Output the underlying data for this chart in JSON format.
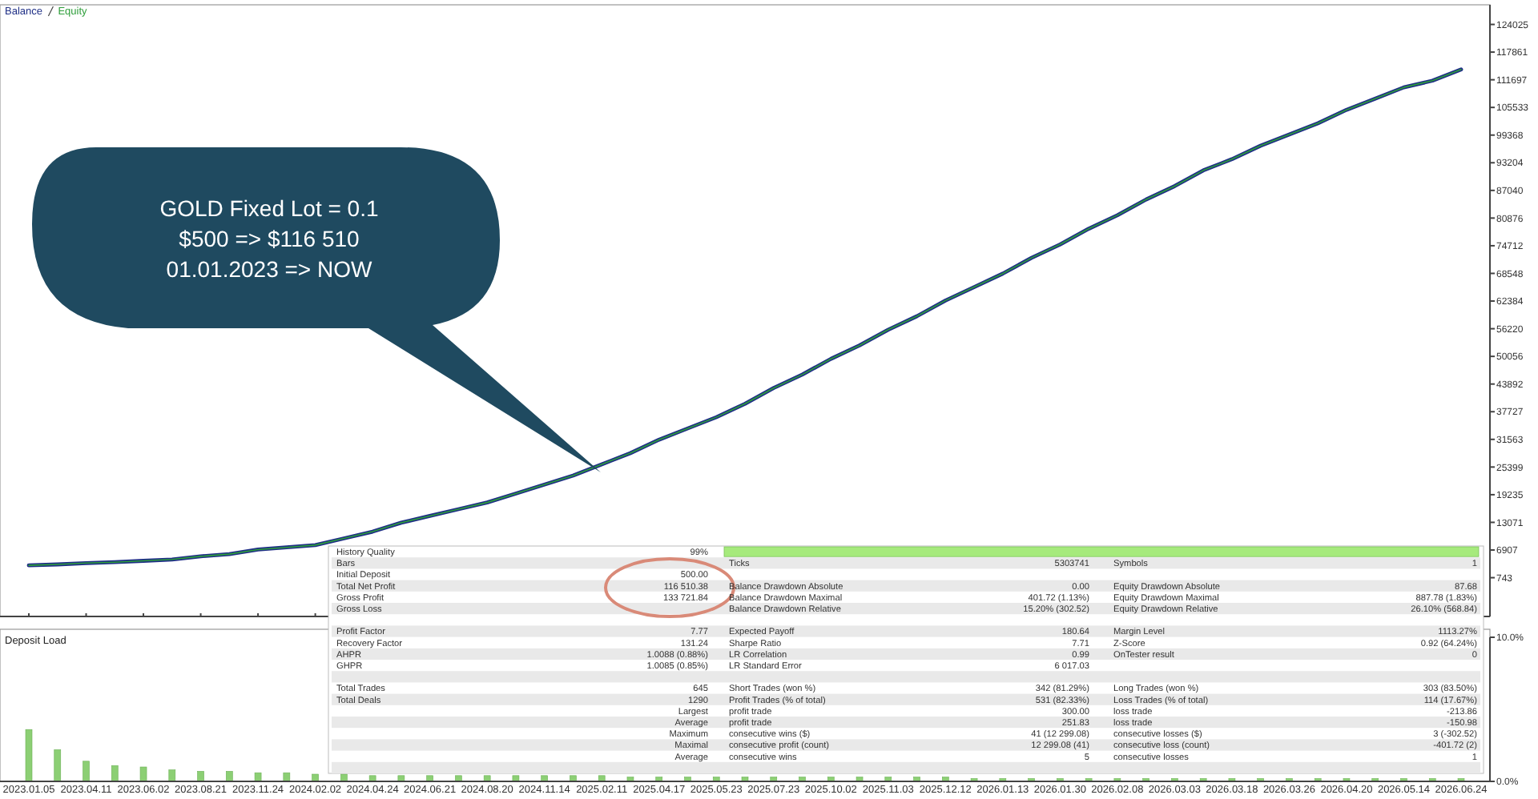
{
  "chart_data": [
    {
      "type": "line",
      "legend": "top left",
      "tick_labels": "y",
      "ylim": [
        -7900,
        128400
      ],
      "yticks": [
        743,
        6907,
        13071,
        19235,
        25399,
        31563,
        37727,
        43892,
        50056,
        56220,
        62384,
        68548,
        74712,
        80876,
        87040,
        93204,
        99368,
        105533,
        111697,
        117861,
        124025
      ],
      "categories": [
        "2023.01.05",
        null,
        "2023.04.11",
        null,
        "2023.06.02",
        null,
        "2023.08.21",
        null,
        "2023.11.24",
        null,
        "2024.02.02",
        null,
        "2024.04.24",
        null,
        "2024.06.21",
        null,
        "2024.08.20",
        null,
        "2024.11.14",
        null,
        "2025.02.11",
        null,
        "2025.04.17",
        null,
        "2025.05.23",
        null,
        "2025.07.23",
        null,
        "2025.10.02",
        null,
        "2025.11.03",
        null,
        "2025.12.12",
        null,
        "2026.01.13",
        null,
        "2026.01.30",
        null,
        "2026.02.08",
        null,
        "2026.03.03",
        null,
        "2026.03.18",
        null,
        "2026.03.26",
        null,
        "2026.04.20",
        null,
        "2026.05.14",
        null,
        "2026.06.24"
      ],
      "series": [
        {
          "name": "Balance",
          "color": "#1f2f86",
          "values": [
            3500,
            3700,
            4000,
            4200,
            4500,
            4800,
            5500,
            6000,
            7000,
            7500,
            8000,
            9500,
            11000,
            13000,
            14500,
            16000,
            17500,
            19500,
            21500,
            23500,
            26000,
            28500,
            31500,
            34000,
            36500,
            39500,
            43000,
            46000,
            49500,
            52500,
            56000,
            59000,
            62500,
            65500,
            68500,
            72000,
            75000,
            78500,
            81500,
            85000,
            88000,
            91500,
            94000,
            97000,
            99500,
            102000,
            105000,
            107500,
            110000,
            111500,
            114000
          ]
        },
        {
          "name": "Equity",
          "color": "#2e9e3a",
          "values": [
            3500,
            3700,
            4000,
            4200,
            4500,
            4800,
            5500,
            6000,
            7000,
            7500,
            8000,
            9500,
            11000,
            13000,
            14500,
            16000,
            17500,
            19500,
            21500,
            23500,
            26000,
            28500,
            31500,
            34000,
            36500,
            39500,
            43000,
            46000,
            49500,
            52500,
            56000,
            59000,
            62500,
            65500,
            68500,
            72000,
            75000,
            78500,
            81500,
            85000,
            88000,
            91500,
            94000,
            97000,
            99500,
            102000,
            105000,
            107500,
            110000,
            111500,
            114000
          ]
        }
      ],
      "annotations": [
        "GOLD Fixed Lot = 0.1",
        "$500 => $116 510",
        "01.01.2023 => NOW"
      ]
    },
    {
      "type": "bar",
      "title": "Deposit Load",
      "color": "#8ccf74",
      "ylim": [
        0,
        10
      ],
      "yticks": [
        {
          "value": 10,
          "label": "10.0%"
        },
        {
          "value": 0,
          "label": "0.0%"
        }
      ],
      "categories": [
        "2023.01.05",
        null,
        "2023.04.11",
        null,
        "2023.06.02",
        null,
        "2023.08.21",
        null,
        "2023.11.24",
        null,
        "2024.02.02",
        null,
        "2024.04.24",
        null,
        "2024.06.21",
        null,
        "2024.08.20",
        null,
        "2024.11.14",
        null,
        "2025.02.11",
        null,
        "2025.04.17",
        null,
        "2025.05.23",
        null,
        "2025.07.23",
        null,
        "2025.10.02",
        null,
        "2025.11.03",
        null,
        "2025.12.12",
        null,
        "2026.01.13",
        null,
        "2026.01.30",
        null,
        "2026.02.08",
        null,
        "2026.03.03",
        null,
        "2026.03.18",
        null,
        "2026.03.26",
        null,
        "2026.04.20",
        null,
        "2026.05.14",
        null,
        "2026.06.24"
      ],
      "values": [
        3.6,
        2.2,
        1.4,
        1.1,
        1.0,
        0.8,
        0.7,
        0.7,
        0.6,
        0.6,
        0.5,
        0.5,
        0.4,
        0.4,
        0.4,
        0.4,
        0.4,
        0.4,
        0.4,
        0.4,
        0.4,
        0.3,
        0.3,
        0.3,
        0.3,
        0.3,
        0.3,
        0.3,
        0.3,
        0.3,
        0.3,
        0.3,
        0.3,
        0.2,
        0.2,
        0.2,
        0.2,
        0.2,
        0.2,
        0.2,
        0.2,
        0.2,
        0.2,
        0.2,
        0.2,
        0.2,
        0.2,
        0.2,
        0.2,
        0.2,
        0.2
      ]
    },
    {
      "type": "other",
      "annotations": [
        "History Quality",
        "99%",
        "Bars",
        "Ticks",
        "5303741",
        "Symbols",
        "1",
        "Initial Deposit",
        "500.00",
        "Total Net Profit",
        "116 510.38",
        "Balance Drawdown Absolute",
        "0.00",
        "Equity Drawdown Absolute",
        "87.68",
        "Gross Profit",
        "133 721.84",
        "Balance Drawdown Maximal",
        "401.72 (1.13%)",
        "Equity Drawdown Maximal",
        "887.78 (1.83%)",
        "Gross Loss",
        "Balance Drawdown Relative",
        "15.20% (302.52)",
        "Equity Drawdown Relative",
        "26.10% (568.84)",
        "Profit Factor",
        "7.77",
        "Expected Payoff",
        "180.64",
        "Margin Level",
        "1113.27%",
        "Recovery Factor",
        "131.24",
        "Sharpe Ratio",
        "7.71",
        "Z-Score",
        "0.92 (64.24%)",
        "AHPR",
        "1.0088 (0.88%)",
        "LR Correlation",
        "0.99",
        "OnTester result",
        "0",
        "GHPR",
        "1.0085 (0.85%)",
        "LR Standard Error",
        "6 017.03",
        "Total Trades",
        "645",
        "Short Trades (won %)",
        "342 (81.29%)",
        "Long Trades (won %)",
        "303 (83.50%)",
        "Total Deals",
        "1290",
        "Profit Trades (% of total)",
        "531 (82.33%)",
        "Loss Trades (% of total)",
        "114 (17.67%)",
        "Largest",
        "profit trade",
        "300.00",
        "loss trade",
        "-213.86",
        "Average",
        "profit trade",
        "251.83",
        "loss trade",
        "-150.98",
        "Maximum",
        "consecutive wins ($)",
        "41 (12 299.08)",
        "consecutive losses ($)",
        "3 (-302.52)",
        "Maximal",
        "consecutive profit (count)",
        "12 299.08 (41)",
        "consecutive loss (count)",
        "-401.72 (2)",
        "Average",
        "consecutive wins",
        "5",
        "consecutive losses",
        "1"
      ]
    }
  ]
}
